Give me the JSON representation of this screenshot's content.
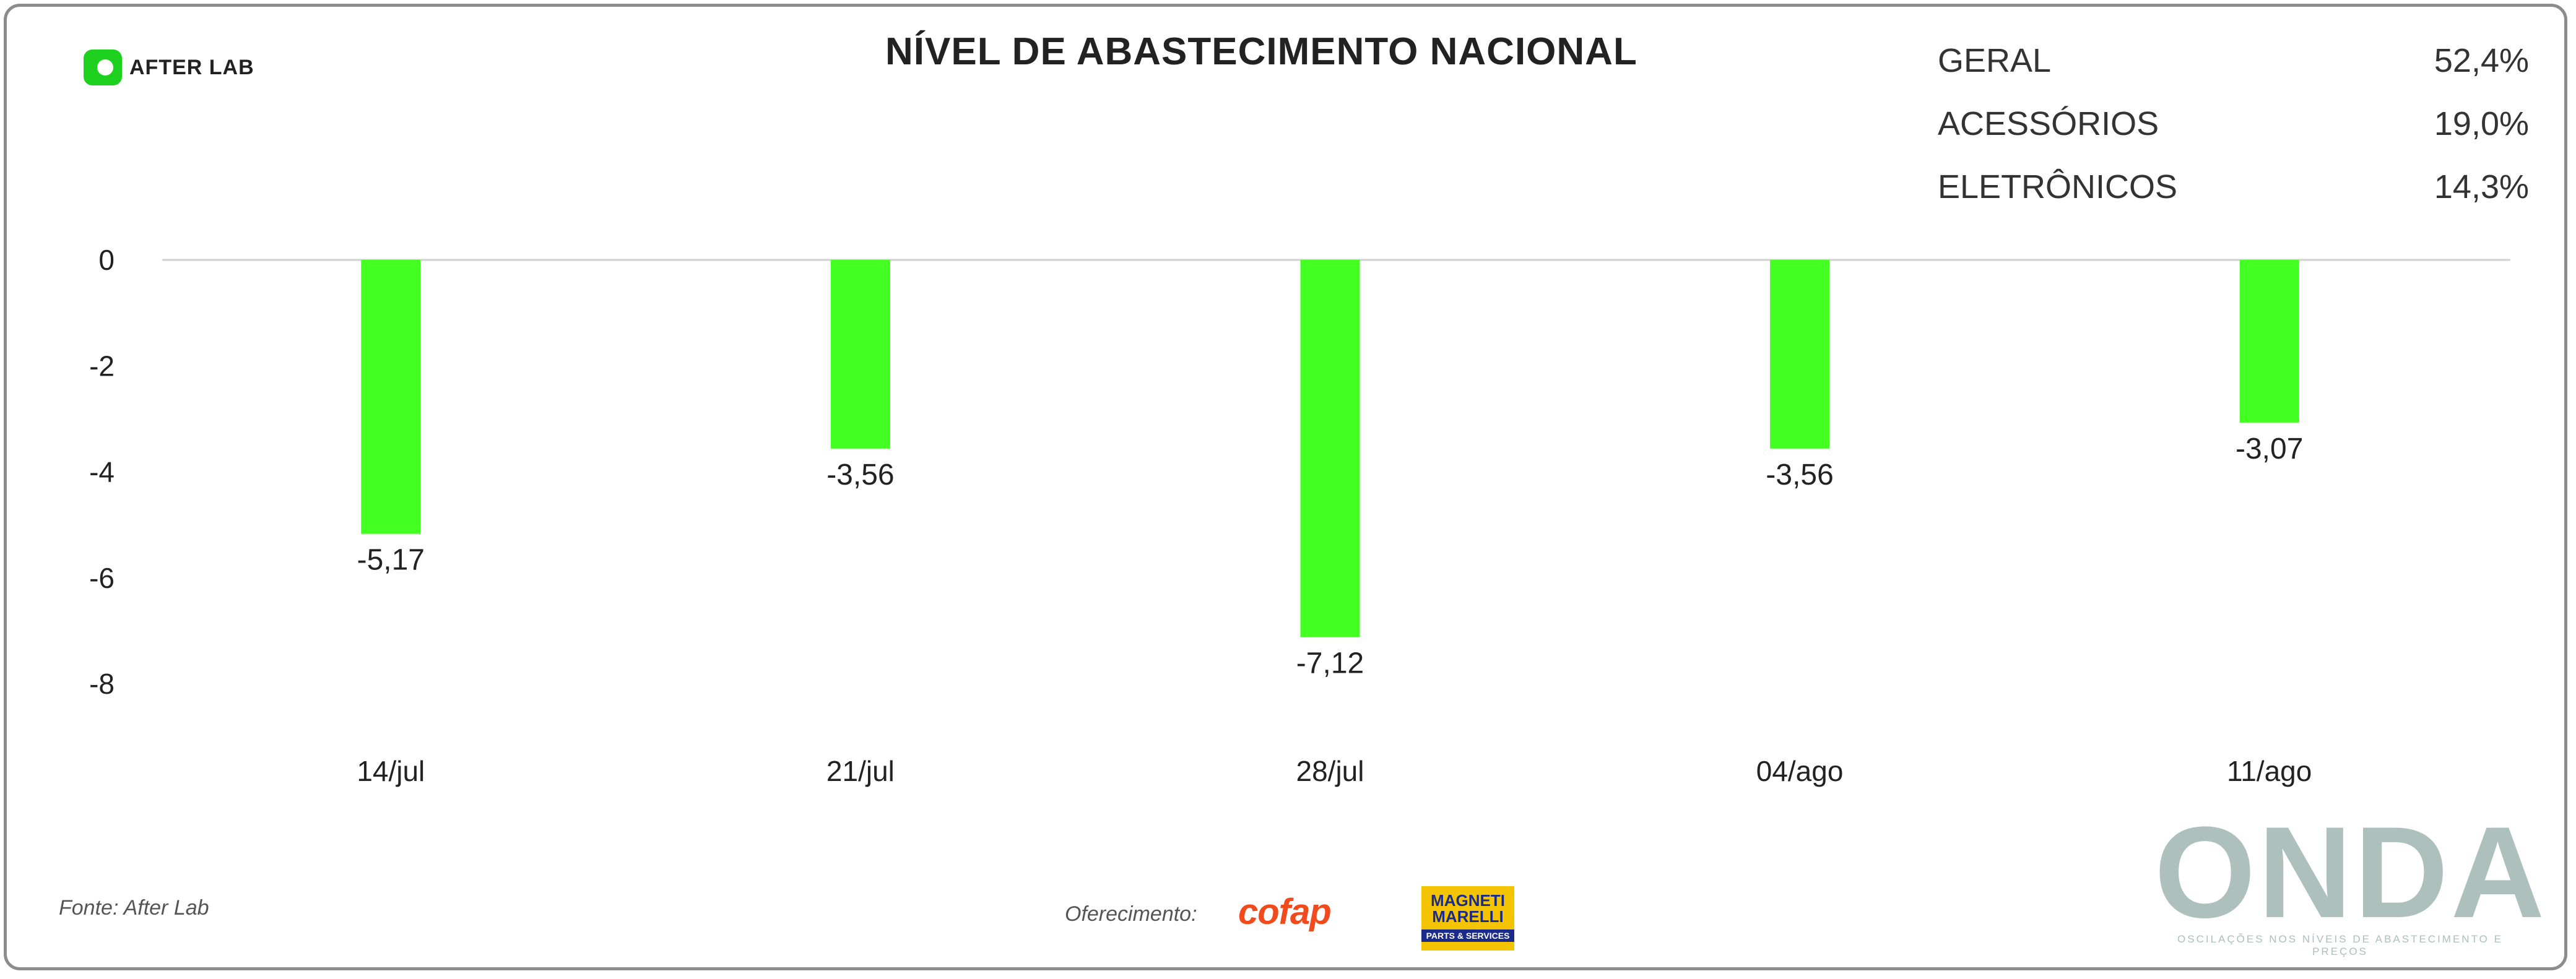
{
  "header": {
    "logo_text": "AFTER LAB",
    "title": "NÍVEL DE ABASTECIMENTO NACIONAL"
  },
  "summary": [
    {
      "label": "GERAL",
      "value": "52,4%"
    },
    {
      "label": "ACESSÓRIOS",
      "value": "19,0%"
    },
    {
      "label": "ELETRÔNICOS",
      "value": "14,3%"
    }
  ],
  "chart_data": {
    "type": "bar",
    "categories": [
      "14/jul",
      "21/jul",
      "28/jul",
      "04/ago",
      "11/ago"
    ],
    "values": [
      -5.17,
      -3.56,
      -7.12,
      -3.56,
      -3.07
    ],
    "value_labels": [
      "-5,17",
      "-3,56",
      "-7,12",
      "-3,56",
      "-3,07"
    ],
    "ylim": [
      -8,
      0
    ],
    "yticks": [
      0,
      -2,
      -4,
      -6,
      -8
    ],
    "grid": false,
    "bar_color": "#44ff22"
  },
  "footer": {
    "source": "Fonte: After Lab",
    "oferecimento": "Oferecimento:",
    "sponsor_cofap": "cofap",
    "sponsor_marelli_line1": "MAGNETI",
    "sponsor_marelli_line2": "MARELLI",
    "sponsor_marelli_line3": "PARTS & SERVICES",
    "brand": "ONDA",
    "brand_tagline": "OSCILAÇÕES NOS NÍVEIS DE ABASTECIMENTO E PREÇOS"
  }
}
